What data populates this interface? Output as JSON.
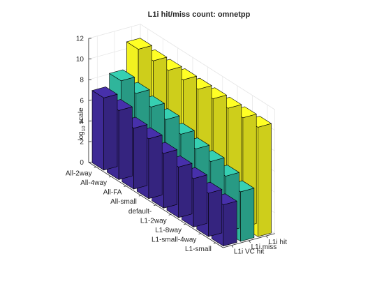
{
  "chart_data": {
    "type": "bar",
    "title": "L1i hit/miss count: omnetpp",
    "ylabel": "log",
    "ylabel_sub": "10",
    "ylabel_suffix": " scale",
    "zlim": [
      0,
      12
    ],
    "z_ticks": [
      "0",
      "2",
      "4",
      "6",
      "8",
      "10",
      "12"
    ],
    "grid": true,
    "categories": [
      "All-2way",
      "All-4way",
      "All-FA",
      "All-small",
      "default-",
      "L1-2way",
      "L1-8way",
      "L1-small-4way",
      "L1-small"
    ],
    "series": [
      {
        "name": "L1i VC hit",
        "color": "#3e2a95",
        "values": [
          7.0,
          6.7,
          5.9,
          5.8,
          5.3,
          4.9,
          4.7,
          4.2,
          4.0
        ]
      },
      {
        "name": "L1i miss",
        "color": "#2fb59b",
        "values": [
          8.2,
          7.9,
          7.5,
          7.2,
          6.7,
          6.2,
          5.9,
          5.4,
          4.8
        ]
      },
      {
        "name": "L1i hit",
        "color": "#f2f220",
        "values": [
          10.8,
          10.6,
          10.6,
          10.6,
          10.6,
          10.6,
          10.6,
          10.6,
          10.6
        ]
      }
    ]
  }
}
